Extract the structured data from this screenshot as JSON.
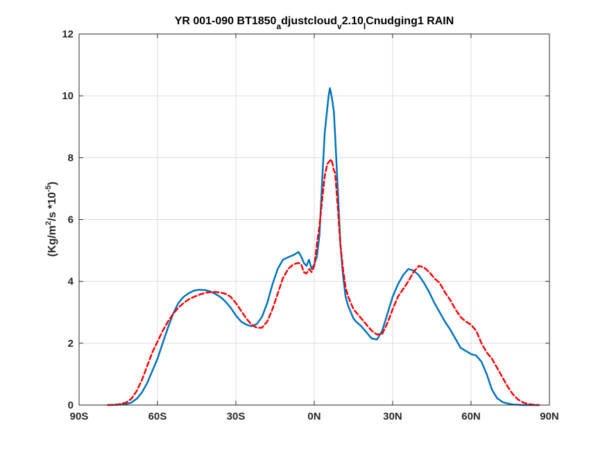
{
  "chart_data": {
    "type": "line",
    "title_parts": [
      {
        "text": "YR 001-090 BT1850",
        "sub": false
      },
      {
        "text": "a",
        "sub": true
      },
      {
        "text": "djustcloud",
        "sub": false
      },
      {
        "text": "v",
        "sub": true
      },
      {
        "text": "2.10",
        "sub": false
      },
      {
        "text": "l",
        "sub": true
      },
      {
        "text": "Cnudging1 RAIN",
        "sub": false
      }
    ],
    "ylabel_parts": [
      {
        "text": "(Kg/m",
        "sup": false
      },
      {
        "text": "2",
        "sup": true
      },
      {
        "text": "/s   *10",
        "sup": false
      },
      {
        "text": "-5",
        "sup": true
      },
      {
        "text": ")",
        "sup": false
      }
    ],
    "xlim": [
      -90,
      90
    ],
    "ylim": [
      0,
      12
    ],
    "x_ticks": [
      -90,
      -60,
      -30,
      0,
      30,
      60,
      90
    ],
    "x_tick_labels": [
      "90S",
      "60S",
      "30S",
      "0N",
      "30N",
      "60N",
      "90N"
    ],
    "y_ticks": [
      0,
      2,
      4,
      6,
      8,
      10,
      12
    ],
    "y_tick_labels": [
      "0",
      "2",
      "4",
      "6",
      "8",
      "10",
      "12"
    ],
    "grid": true,
    "series": [
      {
        "color": "#0072BD",
        "style": "solid",
        "x": [
          -79,
          -75,
          -72,
          -70,
          -68,
          -66,
          -64,
          -62,
          -60,
          -58,
          -56,
          -54,
          -52,
          -50,
          -48,
          -46,
          -44,
          -42,
          -40,
          -38,
          -36,
          -34,
          -32,
          -30,
          -28,
          -26,
          -24,
          -22,
          -20,
          -18,
          -16,
          -14,
          -12,
          -10,
          -8,
          -6,
          -5,
          -4,
          -3,
          -2,
          -1,
          0,
          1,
          2,
          3,
          4,
          5,
          5.5,
          6,
          6.5,
          7,
          7.5,
          8,
          9,
          10,
          11,
          12,
          13,
          14,
          15,
          16,
          18,
          20,
          22,
          24,
          26,
          28,
          30,
          32,
          34,
          36,
          38,
          40,
          42,
          44,
          46,
          48,
          50,
          52,
          54,
          56,
          58,
          60,
          62,
          64,
          66,
          68,
          70,
          72,
          74,
          76,
          78,
          80,
          82,
          84,
          86
        ],
        "y": [
          0.0,
          0.01,
          0.03,
          0.08,
          0.2,
          0.4,
          0.7,
          1.1,
          1.5,
          2.0,
          2.5,
          2.95,
          3.3,
          3.5,
          3.62,
          3.7,
          3.73,
          3.72,
          3.68,
          3.6,
          3.5,
          3.35,
          3.15,
          2.9,
          2.7,
          2.6,
          2.55,
          2.62,
          2.85,
          3.3,
          3.9,
          4.4,
          4.7,
          4.78,
          4.85,
          4.95,
          4.8,
          4.6,
          4.5,
          4.7,
          4.4,
          4.55,
          4.8,
          5.5,
          7.2,
          8.8,
          9.6,
          10.0,
          10.25,
          10.05,
          9.8,
          9.5,
          8.7,
          7.0,
          5.2,
          4.2,
          3.5,
          3.2,
          3.0,
          2.8,
          2.7,
          2.55,
          2.35,
          2.15,
          2.12,
          2.4,
          2.95,
          3.5,
          3.9,
          4.2,
          4.4,
          4.35,
          4.2,
          3.95,
          3.65,
          3.3,
          3.0,
          2.7,
          2.45,
          2.15,
          1.85,
          1.75,
          1.65,
          1.6,
          1.4,
          1.0,
          0.5,
          0.22,
          0.1,
          0.05,
          0.02,
          0.01,
          0.0,
          0.0,
          0.0,
          0.0
        ]
      },
      {
        "color": "#FF0000",
        "style": "dashed",
        "x": [
          -79,
          -75,
          -72,
          -70,
          -68,
          -66,
          -64,
          -62,
          -60,
          -58,
          -56,
          -54,
          -52,
          -50,
          -48,
          -46,
          -44,
          -42,
          -40,
          -38,
          -36,
          -34,
          -32,
          -30,
          -28,
          -26,
          -24,
          -22,
          -20,
          -18,
          -16,
          -14,
          -12,
          -10,
          -8,
          -6,
          -5,
          -4,
          -3,
          -2,
          -1,
          0,
          1,
          2,
          3,
          4,
          5,
          6,
          6.5,
          7,
          7.5,
          8,
          9,
          10,
          11,
          12,
          13,
          14,
          15,
          16,
          18,
          20,
          22,
          24,
          26,
          28,
          30,
          32,
          34,
          36,
          38,
          40,
          42,
          44,
          46,
          48,
          50,
          52,
          54,
          56,
          58,
          60,
          62,
          64,
          66,
          68,
          70,
          72,
          74,
          76,
          78,
          80,
          82,
          84,
          86
        ],
        "y": [
          0.0,
          0.02,
          0.08,
          0.2,
          0.45,
          0.8,
          1.25,
          1.7,
          2.05,
          2.4,
          2.7,
          2.95,
          3.15,
          3.3,
          3.42,
          3.5,
          3.57,
          3.62,
          3.65,
          3.66,
          3.64,
          3.6,
          3.5,
          3.3,
          3.05,
          2.8,
          2.6,
          2.5,
          2.5,
          2.7,
          3.1,
          3.6,
          4.1,
          4.4,
          4.55,
          4.6,
          4.55,
          4.3,
          4.25,
          4.4,
          4.3,
          4.5,
          5.2,
          5.8,
          6.6,
          7.4,
          7.8,
          7.9,
          7.95,
          7.8,
          7.6,
          7.5,
          6.4,
          5.2,
          4.4,
          3.8,
          3.5,
          3.3,
          3.1,
          3.0,
          2.8,
          2.6,
          2.4,
          2.28,
          2.3,
          2.65,
          3.1,
          3.5,
          3.75,
          4.0,
          4.3,
          4.5,
          4.45,
          4.3,
          4.1,
          3.95,
          3.65,
          3.4,
          3.1,
          2.85,
          2.7,
          2.6,
          2.4,
          2.0,
          1.7,
          1.5,
          1.2,
          0.9,
          0.6,
          0.35,
          0.18,
          0.08,
          0.03,
          0.01,
          0.0
        ]
      }
    ]
  }
}
